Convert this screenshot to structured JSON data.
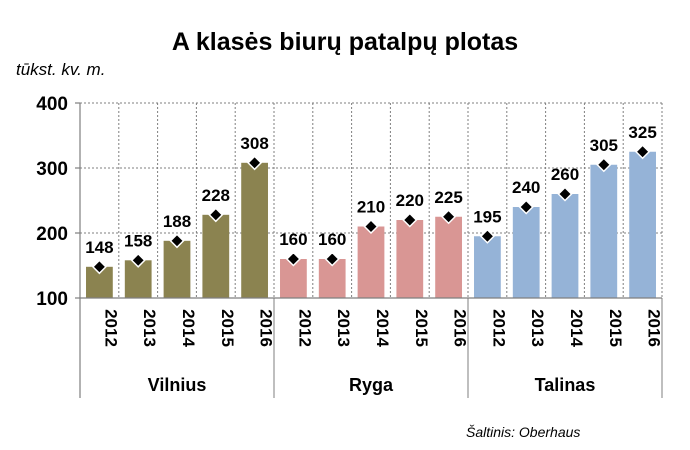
{
  "chart_data": {
    "type": "bar",
    "title": "A klasės biurų patalpų plotas",
    "ylabel": "tūkst. kv. m.",
    "source": "Šaltinis: Oberhaus",
    "ylim": [
      100,
      400
    ],
    "yticks": [
      100,
      200,
      300,
      400
    ],
    "grid": true,
    "groups": [
      {
        "name": "Vilnius",
        "color": "#8b8350",
        "categories": [
          "2012",
          "2013",
          "2014",
          "2015",
          "2016"
        ],
        "values": [
          148,
          158,
          188,
          228,
          308
        ],
        "labels": [
          "148",
          "158",
          "188",
          "228",
          "308"
        ]
      },
      {
        "name": "Ryga",
        "color": "#d99694",
        "categories": [
          "2012",
          "2013",
          "2014",
          "2015",
          "2016"
        ],
        "values": [
          160,
          160,
          210,
          220,
          225
        ],
        "labels": [
          "160",
          "160",
          "210",
          "220",
          "225"
        ]
      },
      {
        "name": "Talinas",
        "color": "#95b3d7",
        "categories": [
          "2012",
          "2013",
          "2014",
          "2015",
          "2016"
        ],
        "values": [
          195,
          240,
          260,
          305,
          325
        ],
        "labels": [
          "195",
          "240",
          "260",
          "305",
          "325"
        ]
      }
    ],
    "marker_color": "#000000",
    "marker_edge": "#ffffff"
  }
}
